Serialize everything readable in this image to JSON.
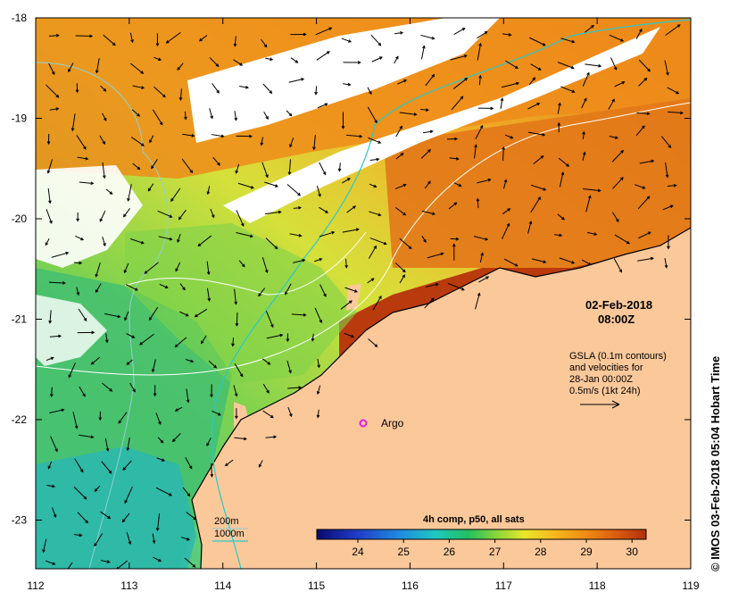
{
  "map": {
    "x_ticks": [
      "112",
      "113",
      "114",
      "115",
      "116",
      "117",
      "118",
      "119"
    ],
    "y_ticks": [
      "-18",
      "-19",
      "-20",
      "-21",
      "-22",
      "-23"
    ],
    "date": "02-Feb-2018",
    "time": "08:00Z",
    "gsla_lines": [
      "GSLA (0.1m contours)",
      "and velocities for",
      "28-Jan 00:00Z",
      "0.5m/s (1kt 24h)"
    ],
    "argo_label": "Argo",
    "legend_200m": "200m",
    "legend_1000m": "1000m",
    "colorbar_title": "4h comp, p50, all sats",
    "colorbar_ticks": [
      "24",
      "25",
      "26",
      "27",
      "28",
      "29",
      "30"
    ],
    "credit": "© IMOS 03-Feb-2018 05:04 Hobart Time",
    "colors": {
      "land": "#fbc89a",
      "cloud": "#ffffff",
      "isobath_200m": "#8fd0d0",
      "isobath_1000m": "#29c9c9",
      "argo": "#e020e0"
    }
  }
}
